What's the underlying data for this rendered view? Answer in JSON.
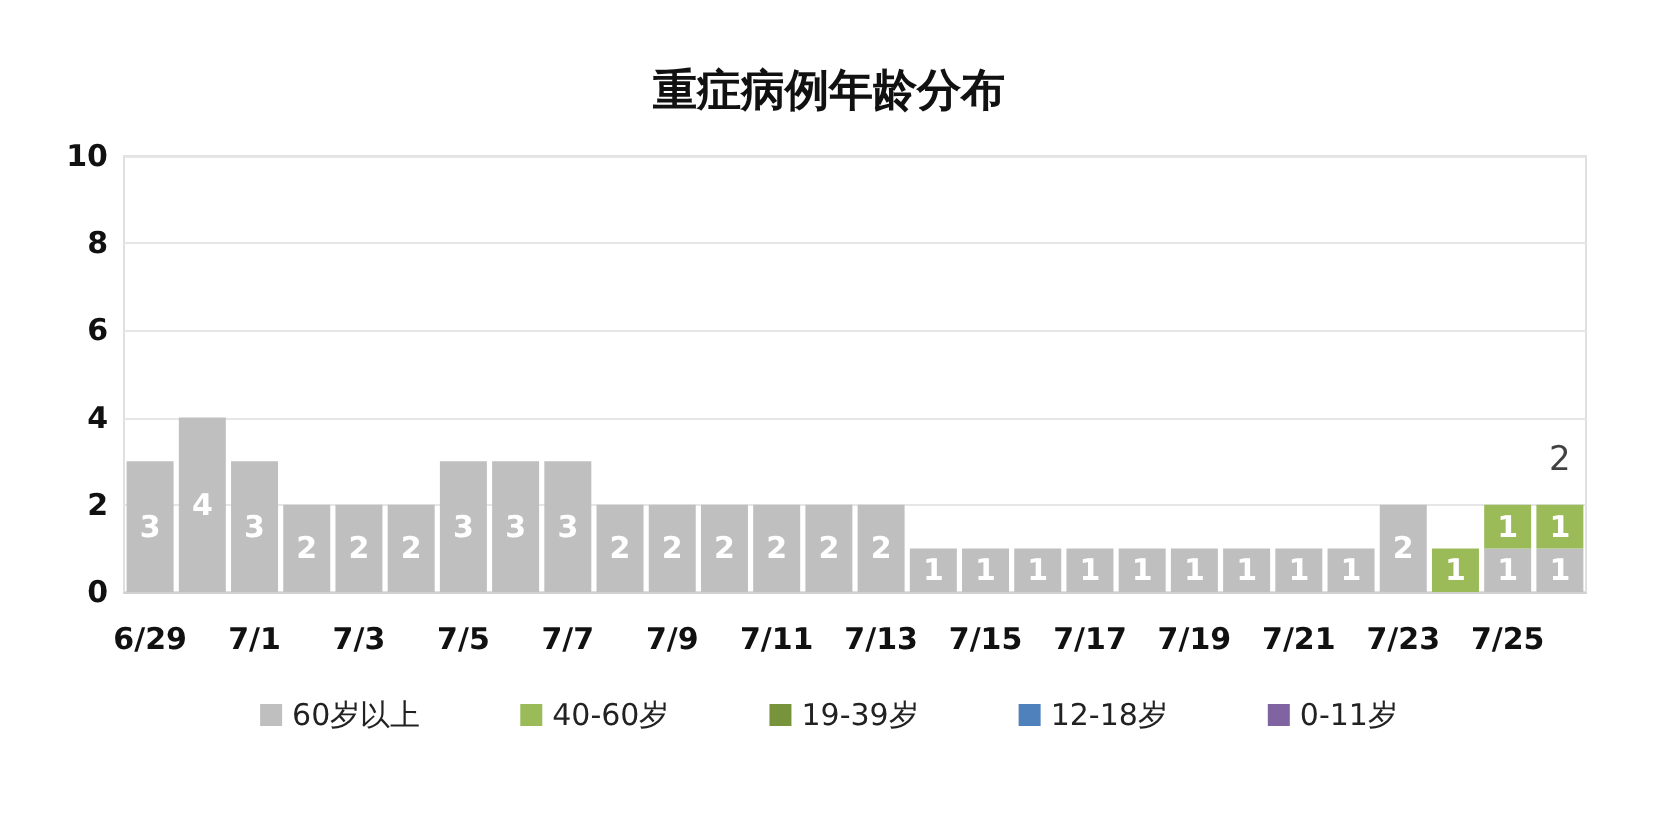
{
  "chart_data": {
    "type": "bar",
    "title": "重症病例年龄分布",
    "categories": [
      "6/29",
      null,
      "7/1",
      null,
      "7/3",
      null,
      "7/5",
      null,
      "7/7",
      null,
      "7/9",
      null,
      "7/11",
      null,
      "7/13",
      null,
      "7/15",
      null,
      "7/17",
      null,
      "7/19",
      null,
      "7/21",
      null,
      "7/23",
      null,
      "7/25",
      null
    ],
    "series": [
      {
        "name": "60岁以上",
        "color": "#bfbfbf",
        "values": [
          3,
          4,
          3,
          2,
          2,
          2,
          3,
          3,
          3,
          2,
          2,
          2,
          2,
          2,
          2,
          1,
          1,
          1,
          1,
          1,
          1,
          1,
          1,
          1,
          2,
          null,
          1,
          1
        ]
      },
      {
        "name": "40-60岁",
        "color": "#9bbb59",
        "values": [
          null,
          null,
          null,
          null,
          null,
          null,
          null,
          null,
          null,
          null,
          null,
          null,
          null,
          null,
          null,
          null,
          null,
          null,
          null,
          null,
          null,
          null,
          null,
          null,
          null,
          1,
          1,
          1
        ]
      },
      {
        "name": "19-39岁",
        "color": "#77933c",
        "values": [
          null,
          null,
          null,
          null,
          null,
          null,
          null,
          null,
          null,
          null,
          null,
          null,
          null,
          null,
          null,
          null,
          null,
          null,
          null,
          null,
          null,
          null,
          null,
          null,
          null,
          null,
          null,
          null
        ]
      },
      {
        "name": "12-18岁",
        "color": "#4f81bd",
        "values": [
          null,
          null,
          null,
          null,
          null,
          null,
          null,
          null,
          null,
          null,
          null,
          null,
          null,
          null,
          null,
          null,
          null,
          null,
          null,
          null,
          null,
          null,
          null,
          null,
          null,
          null,
          null,
          null
        ]
      },
      {
        "name": "0-11岁",
        "color": "#8064a2",
        "values": [
          null,
          null,
          null,
          null,
          null,
          null,
          null,
          null,
          null,
          null,
          null,
          null,
          null,
          null,
          null,
          null,
          null,
          null,
          null,
          null,
          null,
          null,
          null,
          null,
          null,
          null,
          null,
          null
        ]
      }
    ],
    "stacked": true,
    "data_labels": true,
    "totals": [
      null,
      null,
      null,
      null,
      null,
      null,
      null,
      null,
      null,
      null,
      null,
      null,
      null,
      null,
      null,
      null,
      null,
      null,
      null,
      null,
      null,
      null,
      null,
      null,
      null,
      null,
      null,
      "2"
    ],
    "ylim": [
      0,
      10
    ],
    "yticks": [
      0,
      2,
      4,
      6,
      8,
      10
    ],
    "grid": "y",
    "legend": "bottom"
  }
}
